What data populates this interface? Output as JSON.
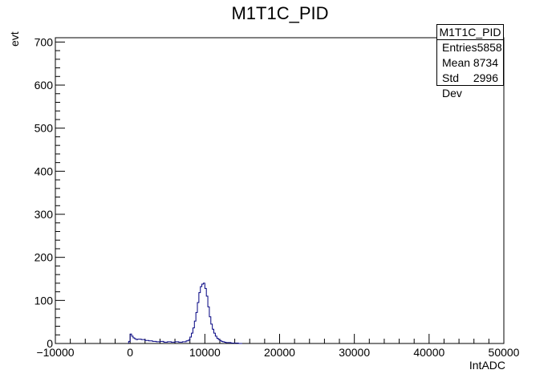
{
  "chart_data": {
    "type": "histogram",
    "title": "M1T1C_PID",
    "xlabel": "IntADC",
    "ylabel": "evt",
    "xlim": [
      -10000,
      50000
    ],
    "ylim": [
      0,
      710
    ],
    "x_ticks": [
      -10000,
      0,
      10000,
      20000,
      30000,
      40000,
      50000
    ],
    "y_ticks": [
      0,
      100,
      200,
      300,
      400,
      500,
      600,
      700
    ],
    "grid": false,
    "series": [
      {
        "color": "#000080",
        "x": [
          -200,
          0,
          200,
          400,
          600,
          800,
          1000,
          1500,
          2000,
          2500,
          3000,
          3500,
          4000,
          4500,
          5000,
          5500,
          6000,
          6500,
          7000,
          7500,
          7800,
          8000,
          8200,
          8400,
          8600,
          8800,
          9000,
          9200,
          9400,
          9600,
          9800,
          10000,
          10200,
          10400,
          10600,
          10800,
          11000,
          11200,
          11400,
          11600,
          11800,
          12000,
          12200,
          12400,
          12600,
          12800,
          13000,
          13500,
          14000,
          14500
        ],
        "values": [
          5,
          22,
          17,
          13,
          11,
          9,
          10,
          9,
          7,
          6,
          5,
          4,
          5,
          3,
          4,
          3,
          4,
          3,
          4,
          6,
          8,
          15,
          24,
          36,
          52,
          72,
          95,
          118,
          132,
          138,
          140,
          128,
          110,
          85,
          62,
          45,
          33,
          24,
          17,
          12,
          9,
          7,
          5,
          4,
          3,
          2,
          2,
          1,
          1,
          0
        ]
      }
    ]
  },
  "stats_box": {
    "title": "M1T1C_PID",
    "rows": [
      {
        "label": "Entries",
        "value": "5858"
      },
      {
        "label": "Mean",
        "value": "8734"
      },
      {
        "label": "Std Dev",
        "value": "2996"
      }
    ]
  }
}
